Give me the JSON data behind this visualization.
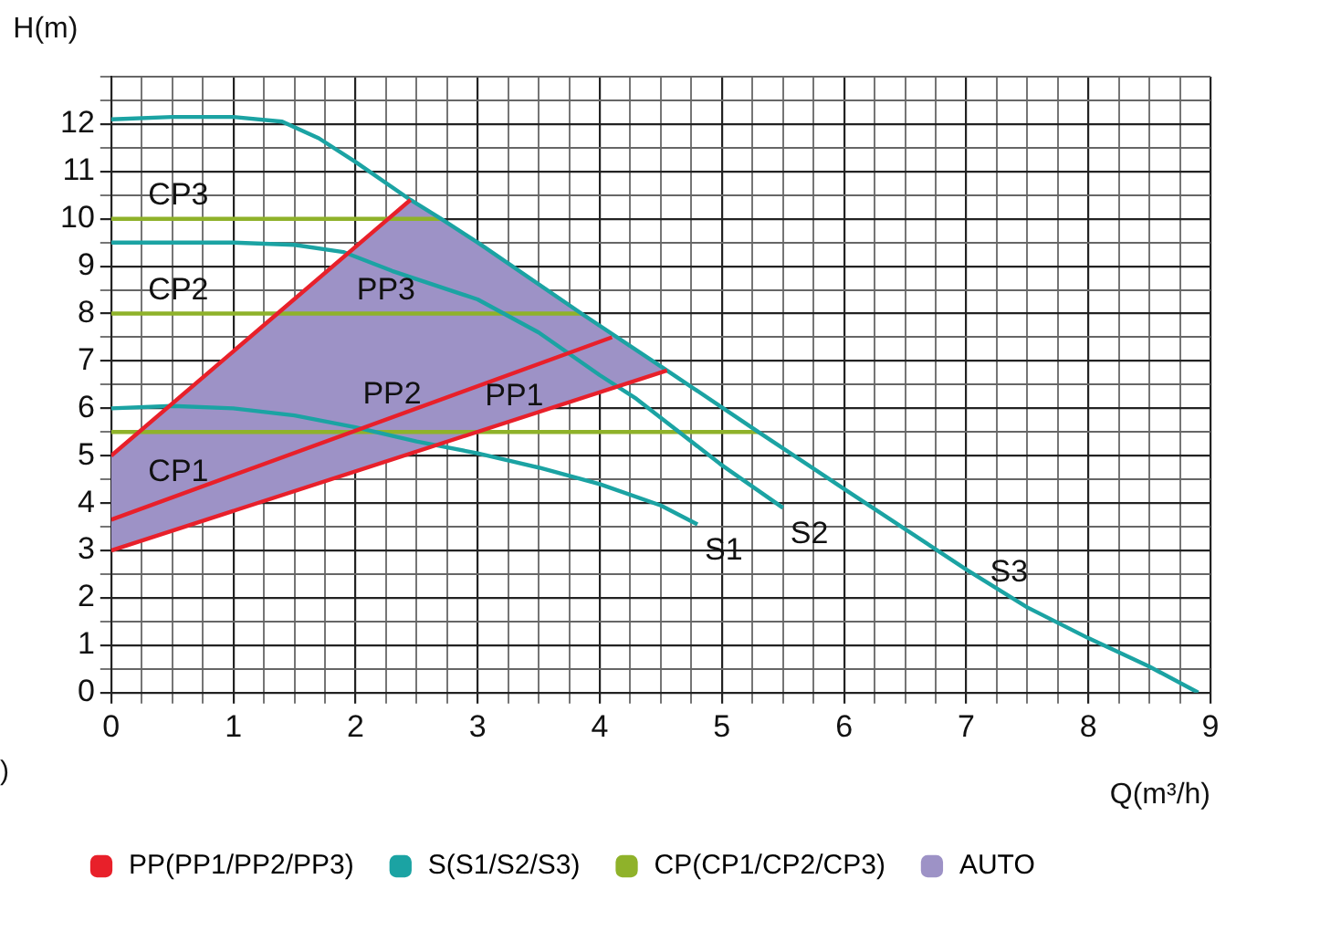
{
  "chart_data": {
    "type": "line",
    "xlabel": "Q(m³/h)",
    "ylabel": "H(m)",
    "xlim": [
      0,
      9
    ],
    "xticks": [
      0,
      {
        "value": 0.25,
        "label": null
      },
      {
        "value": 0.5,
        "label": null
      },
      {
        "value": 0.75,
        "label": null
      },
      1,
      {
        "value": 1.25,
        "label": null
      },
      {
        "value": 1.5,
        "label": null
      },
      {
        "value": 1.75,
        "label": null
      },
      2,
      {
        "value": 2.25,
        "label": null
      },
      {
        "value": 2.5,
        "label": null
      },
      {
        "value": 2.75,
        "label": null
      },
      3,
      {
        "value": 3.25,
        "label": null
      },
      {
        "value": 3.5,
        "label": null
      },
      {
        "value": 3.75,
        "label": null
      },
      4,
      {
        "value": 4.25,
        "label": null
      },
      {
        "value": 4.5,
        "label": null
      },
      {
        "value": 4.75,
        "label": null
      },
      5,
      {
        "value": 5.25,
        "label": null
      },
      {
        "value": 5.5,
        "label": null
      },
      {
        "value": 5.75,
        "label": null
      },
      6,
      {
        "value": 6.25,
        "label": null
      },
      {
        "value": 6.5,
        "label": null
      },
      {
        "value": 6.75,
        "label": null
      },
      7,
      {
        "value": 7.25,
        "label": null
      },
      {
        "value": 7.5,
        "label": null
      },
      {
        "value": 7.75,
        "label": null
      },
      8,
      {
        "value": 8.25,
        "label": null
      },
      {
        "value": 8.5,
        "label": null
      },
      {
        "value": 8.75,
        "label": null
      },
      9
    ],
    "ylim": [
      0,
      13
    ],
    "yticks": [
      0,
      {
        "value": 0.5,
        "label": null
      },
      1,
      {
        "value": 1.5,
        "label": null
      },
      2,
      {
        "value": 2.5,
        "label": null
      },
      3,
      {
        "value": 3.5,
        "label": null
      },
      4,
      {
        "value": 4.5,
        "label": null
      },
      5,
      {
        "value": 5.5,
        "label": null
      },
      6,
      {
        "value": 6.5,
        "label": null
      },
      7,
      {
        "value": 7.5,
        "label": null
      },
      8,
      {
        "value": 8.5,
        "label": null
      },
      9,
      {
        "value": 9.5,
        "label": null
      },
      10,
      {
        "value": 10.5,
        "label": null
      },
      11,
      {
        "value": 11.5,
        "label": null
      },
      12,
      {
        "value": 12.5,
        "label": null
      },
      {
        "value": 13,
        "label": null
      }
    ],
    "grid": true,
    "legend": "bottom",
    "marker": "none",
    "line_style": "solid",
    "series": [
      {
        "name": "PP(PP1/PP2/PP3)",
        "type": "line",
        "color": "#e8202a",
        "x": [
          0,
          4.55,
          null,
          0,
          4.1,
          null,
          0,
          2.45
        ],
        "values": [
          3,
          6.8,
          null,
          3.65,
          7.5,
          null,
          5,
          10.4
        ]
      },
      {
        "name": "S(S1/S2/S3)",
        "type": "line",
        "color": "#1ba3a3",
        "x": [
          0,
          0.5,
          1,
          1.5,
          2,
          2.5,
          3,
          3.5,
          4,
          4.5,
          4.8,
          null,
          0,
          1,
          1.5,
          1.9,
          2.3,
          3,
          3.5,
          4,
          4.3,
          4.5,
          5,
          5.5,
          null,
          0,
          0.5,
          1,
          1.4,
          1.7,
          2,
          2.45,
          2.7,
          3,
          3.85,
          4.55,
          5.3,
          6,
          7,
          7.5,
          8,
          8.5,
          8.9
        ],
        "values": [
          6,
          6.05,
          6,
          5.85,
          5.6,
          5.3,
          5.05,
          4.75,
          4.4,
          3.95,
          3.55,
          null,
          9.5,
          9.5,
          9.45,
          9.3,
          8.9,
          8.3,
          7.6,
          6.7,
          6.2,
          5.8,
          4.8,
          3.9,
          null,
          12.1,
          12.15,
          12.15,
          12.05,
          11.7,
          11.2,
          10.4,
          10,
          9.5,
          8,
          6.8,
          5.5,
          4.3,
          2.6,
          1.8,
          1.15,
          0.55,
          0
        ]
      },
      {
        "name": "CP(CP1/CP2/CP3)",
        "type": "line",
        "color": "#8fb22a",
        "x": [
          0,
          5.3,
          null,
          0,
          3.85,
          null,
          0,
          2.7
        ],
        "values": [
          5.5,
          5.5,
          null,
          8,
          8,
          null,
          10,
          10
        ]
      },
      {
        "name": "AUTO",
        "type": "area",
        "color": "#9d92c6",
        "x": [
          0,
          0,
          2.45,
          2.7,
          3,
          3.85,
          4.55,
          0
        ],
        "values": [
          3,
          5,
          10.4,
          10,
          9.5,
          8,
          6.8,
          3
        ]
      }
    ],
    "annotations": [
      {
        "text": "CP3",
        "x": 0.55,
        "y": 10
      },
      {
        "text": "CP2",
        "x": 0.55,
        "y": 8
      },
      {
        "text": "CP1",
        "x": 0.55,
        "y": 4.17
      },
      {
        "text": "PP3",
        "x": 2.25,
        "y": 8
      },
      {
        "text": "PP2",
        "x": 2.3,
        "y": 5.81
      },
      {
        "text": "PP1",
        "x": 3.3,
        "y": 5.76
      },
      {
        "text": "S1",
        "x": 4.8,
        "y": 3.55
      },
      {
        "text": "S2",
        "x": 5.5,
        "y": 3.9
      },
      {
        "text": "S3",
        "x": 7.35,
        "y": 2.05
      },
      ")"
    ]
  }
}
